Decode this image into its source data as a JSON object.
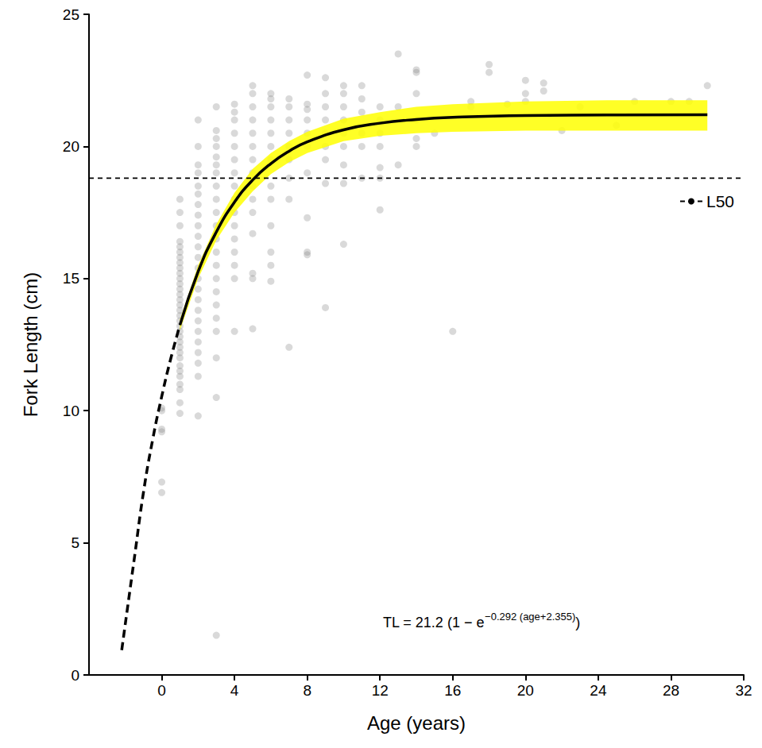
{
  "chart_data": {
    "type": "scatter",
    "x_label": "Age (years)",
    "y_label": "Fork Length (cm)",
    "xlim": [
      -4,
      32
    ],
    "xticks": [
      0,
      4,
      8,
      12,
      16,
      20,
      24,
      28,
      32
    ],
    "ylim": [
      0,
      25
    ],
    "yticks": [
      0,
      5,
      10,
      15,
      20,
      25
    ],
    "grid": false,
    "legend": "upper right",
    "annotations": [
      {
        "text": "TL = 21.2 (1 − e",
        "superscript": "−0.292 (age+2.355)",
        "text_end": ")"
      }
    ],
    "series": [
      {
        "type": "scatter",
        "color": "#808080",
        "marker": "circle",
        "x": [
          0,
          0,
          0,
          0,
          0,
          0,
          1,
          1,
          1,
          1,
          1,
          1,
          1,
          1,
          1,
          1,
          1,
          1,
          1,
          1,
          1,
          1,
          1,
          1,
          1,
          1,
          1,
          1,
          1,
          1,
          1,
          1,
          1,
          1,
          1,
          1,
          1,
          1,
          1,
          2,
          2,
          2,
          2,
          2,
          2,
          2,
          2,
          2,
          2,
          2,
          2,
          2,
          2,
          2,
          2,
          2,
          2,
          2,
          2,
          2,
          2,
          2,
          2,
          3,
          3,
          3,
          3,
          3,
          3,
          3,
          3,
          3,
          3,
          3,
          3,
          3,
          3,
          3,
          3,
          3,
          3,
          3,
          3,
          3,
          3,
          4,
          4,
          4,
          4,
          4,
          4,
          4,
          4,
          4,
          4,
          4,
          4,
          4,
          4,
          4,
          4,
          5,
          5,
          5,
          5,
          5,
          5,
          5,
          5,
          5,
          5,
          5,
          5,
          5,
          5,
          5,
          6,
          6,
          6,
          6,
          6,
          6,
          6,
          6,
          6,
          6,
          6,
          6,
          6,
          7,
          7,
          7,
          7,
          7,
          7,
          7,
          7,
          7,
          8,
          8,
          8,
          8,
          8,
          8,
          8,
          8,
          8,
          8,
          9,
          9,
          9,
          9,
          9,
          9,
          9,
          9,
          9,
          10,
          10,
          10,
          10,
          10,
          10,
          10,
          10,
          10,
          11,
          11,
          11,
          11,
          11,
          11,
          12,
          12,
          12,
          12,
          12,
          12,
          12,
          13,
          13,
          13,
          14,
          14,
          14,
          14,
          14,
          14,
          15,
          16,
          17,
          17,
          18,
          18,
          19,
          20,
          20,
          20,
          21,
          21,
          22,
          23,
          25,
          26,
          28,
          29,
          30
        ],
        "values": [
          10.1,
          9.2,
          9.3,
          7.3,
          6.9,
          10.0,
          9.9,
          10.3,
          10.8,
          11.0,
          11.3,
          11.5,
          11.7,
          12.0,
          12.2,
          12.4,
          12.6,
          12.8,
          13.0,
          13.2,
          13.4,
          13.6,
          13.8,
          14.0,
          14.2,
          14.4,
          14.6,
          14.8,
          15.0,
          15.2,
          15.4,
          15.6,
          15.8,
          16.0,
          16.2,
          16.4,
          17.0,
          17.5,
          18.0,
          9.8,
          11.3,
          11.8,
          12.2,
          12.6,
          13.0,
          13.4,
          13.8,
          14.2,
          14.6,
          15.0,
          15.4,
          15.8,
          16.2,
          16.6,
          17.0,
          17.4,
          17.8,
          18.2,
          18.5,
          19.0,
          19.3,
          20.0,
          21.0,
          1.5,
          10.5,
          12.0,
          13.0,
          13.5,
          14.0,
          14.5,
          15.0,
          15.5,
          16.0,
          16.5,
          17.0,
          17.5,
          18.0,
          18.5,
          19.0,
          19.3,
          19.6,
          20.0,
          20.3,
          20.6,
          21.5,
          13.0,
          15.0,
          15.5,
          16.0,
          16.5,
          17.0,
          17.5,
          18.0,
          18.5,
          19.0,
          19.5,
          20.0,
          20.5,
          21.0,
          21.3,
          21.6,
          13.1,
          15.0,
          15.2,
          16.7,
          17.5,
          18.0,
          18.5,
          19.0,
          19.5,
          20.0,
          20.5,
          21.0,
          21.5,
          22.0,
          22.3,
          14.9,
          15.5,
          16.0,
          17.0,
          18.0,
          18.5,
          19.5,
          20.0,
          20.5,
          21.0,
          21.5,
          21.8,
          22.0,
          12.4,
          18.0,
          18.8,
          19.5,
          20.0,
          20.5,
          21.0,
          21.5,
          21.8,
          15.9,
          16.0,
          17.3,
          19.0,
          20.0,
          20.5,
          21.0,
          21.4,
          21.6,
          22.7,
          13.9,
          18.6,
          19.5,
          20.0,
          20.5,
          21.0,
          21.5,
          22.0,
          22.6,
          16.3,
          18.6,
          19.3,
          20.0,
          20.5,
          21.0,
          21.5,
          22.0,
          22.3,
          18.8,
          20.0,
          20.5,
          21.3,
          21.8,
          22.3,
          17.6,
          18.8,
          19.2,
          20.0,
          20.5,
          21.0,
          21.5,
          19.3,
          21.5,
          23.5,
          20.0,
          20.3,
          21.0,
          22.0,
          22.8,
          22.9,
          20.5,
          13.0,
          21.5,
          21.7,
          22.8,
          23.1,
          21.6,
          21.7,
          22.0,
          22.5,
          22.1,
          22.4,
          20.6,
          21.5,
          20.8,
          21.7,
          21.7,
          21.7,
          22.3
        ]
      },
      {
        "type": "band",
        "color": "#ffff00",
        "x": [
          1,
          2,
          3,
          4,
          5,
          6,
          7,
          8,
          10,
          12,
          14,
          16,
          20,
          25,
          30
        ],
        "lower": [
          13.05,
          15.0,
          16.45,
          17.5,
          18.3,
          18.95,
          19.4,
          19.75,
          20.2,
          20.4,
          20.5,
          20.55,
          20.6,
          20.6,
          20.6
        ],
        "upper": [
          13.45,
          15.5,
          17.05,
          18.25,
          19.15,
          19.75,
          20.2,
          20.55,
          21.05,
          21.3,
          21.5,
          21.6,
          21.7,
          21.75,
          21.75
        ]
      },
      {
        "type": "line",
        "color": "#000000",
        "line_style": "dashed",
        "x": [
          -2.2,
          -1.5,
          -1,
          -0.5,
          0,
          0.5,
          1
        ],
        "values": [
          0.94,
          4.45,
          6.93,
          8.9,
          10.54,
          11.98,
          13.24
        ]
      },
      {
        "type": "line",
        "color": "#000000",
        "line_style": "solid",
        "x": [
          1,
          2,
          3,
          4,
          5,
          6,
          7,
          8,
          10,
          12,
          14,
          16,
          20,
          25,
          30
        ],
        "values": [
          13.24,
          15.26,
          16.76,
          17.89,
          18.73,
          19.35,
          19.82,
          20.17,
          20.63,
          20.88,
          21.02,
          21.1,
          21.17,
          21.19,
          21.2
        ]
      },
      {
        "type": "hline",
        "name": "L50",
        "color": "#000000",
        "line_style": "dashed",
        "values": [
          18.8
        ]
      }
    ]
  }
}
